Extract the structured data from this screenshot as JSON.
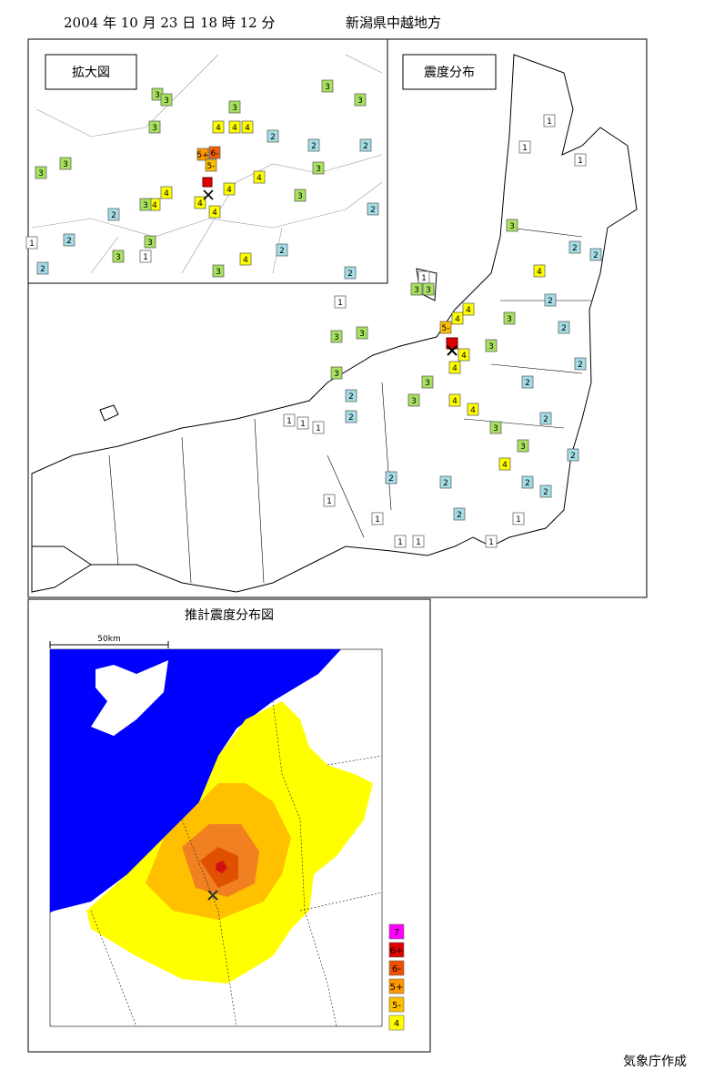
{
  "header": {
    "datetime": "2004 年 10 月 23 日 18 時 12 分",
    "region": "新潟県中越地方"
  },
  "main_map": {
    "title": "震度分布",
    "markers": [
      "1",
      "1",
      "1",
      "1",
      "1",
      "3",
      "4",
      "2",
      "2",
      "2",
      "2",
      "3",
      "3",
      "3",
      "3",
      "3",
      "2",
      "2",
      "5-",
      "4",
      "4",
      "4",
      "4",
      "3",
      "3",
      "2",
      "3",
      "3",
      "4",
      "4",
      "3",
      "2",
      "3",
      "4",
      "2",
      "2",
      "2",
      "2",
      "2",
      "1",
      "1",
      "1",
      "1",
      "1",
      "1",
      "1",
      "1",
      "1",
      "2",
      "2"
    ]
  },
  "inset_map": {
    "title": "拡大図",
    "markers": [
      "3",
      "3",
      "3",
      "4",
      "4",
      "4",
      "5+",
      "6-",
      "5-",
      "4",
      "4",
      "4",
      "4",
      "3",
      "4",
      "4",
      "3",
      "3",
      "2",
      "2",
      "2",
      "3",
      "3",
      "3",
      "4",
      "2",
      "2",
      "3",
      "2",
      "2",
      "2",
      "2",
      "3",
      "3",
      "3",
      "1",
      "1",
      "3"
    ]
  },
  "intensity_colors": {
    "1": "#ffffff",
    "2": "#a4dde6",
    "3": "#a8e060",
    "4": "#ffff00",
    "5-": "#ffc000",
    "5+": "#ff9900",
    "6-": "#f06000"
  },
  "estimate_map": {
    "title": "推計震度分布図",
    "scale": "50km",
    "legend": [
      {
        "label": "7",
        "color": "#ff00ff"
      },
      {
        "label": "6+",
        "color": "#e00000"
      },
      {
        "label": "6-",
        "color": "#f05000"
      },
      {
        "label": "5+",
        "color": "#ff9900"
      },
      {
        "label": "5-",
        "color": "#ffc000"
      },
      {
        "label": "4",
        "color": "#ffff00"
      }
    ]
  },
  "footer": {
    "credit": "気象庁作成"
  }
}
